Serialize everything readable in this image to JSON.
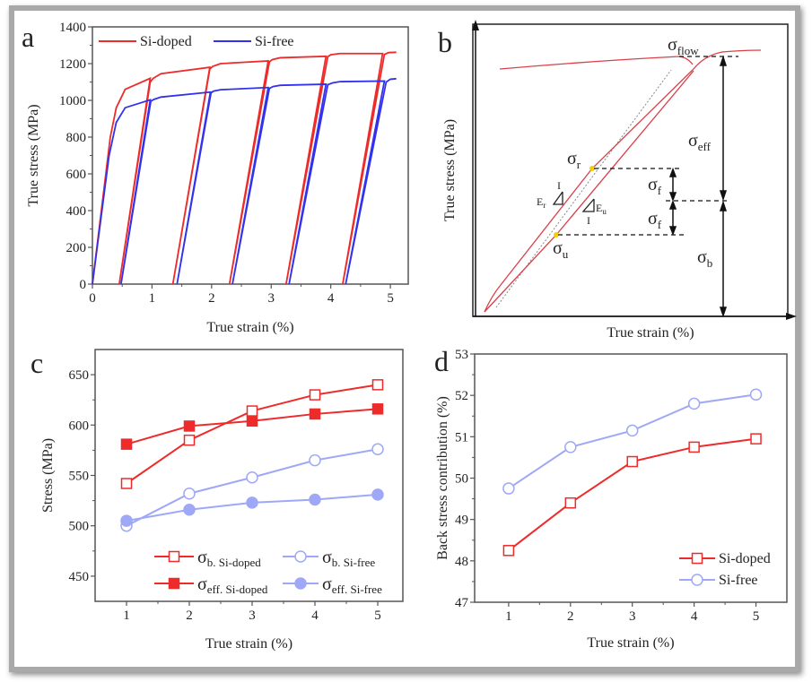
{
  "panels": {
    "a": {
      "letter": "a"
    },
    "b": {
      "letter": "b"
    },
    "c": {
      "letter": "c"
    },
    "d": {
      "letter": "d"
    }
  },
  "chart_data": [
    {
      "id": "a",
      "type": "line",
      "xlabel": "True strain (%)",
      "ylabel": "True stress (MPa)",
      "xlim": [
        0,
        5.3
      ],
      "ylim": [
        0,
        1400
      ],
      "xticks": [
        "0",
        "1",
        "2",
        "3",
        "4",
        "5"
      ],
      "yticks": [
        "0",
        "200",
        "400",
        "600",
        "800",
        "1000",
        "1200",
        "1400"
      ],
      "legend": "top",
      "series": [
        {
          "name": "Si-doped",
          "color": "#ee2b2b",
          "points": [
            [
              0,
              0
            ],
            [
              0.3,
              800
            ],
            [
              0.4,
              960
            ],
            [
              0.55,
              1060
            ],
            [
              0.97,
              1120
            ],
            [
              0.45,
              0
            ],
            [
              0.97,
              1100
            ],
            [
              1.02,
              1120
            ],
            [
              1.15,
              1145
            ],
            [
              1.97,
              1180
            ],
            [
              1.35,
              0
            ],
            [
              1.97,
              1170
            ],
            [
              2.02,
              1185
            ],
            [
              2.15,
              1200
            ],
            [
              2.95,
              1215
            ],
            [
              2.3,
              0
            ],
            [
              2.97,
              1210
            ],
            [
              3.02,
              1222
            ],
            [
              3.15,
              1232
            ],
            [
              3.92,
              1240
            ],
            [
              3.25,
              0
            ],
            [
              3.95,
              1238
            ],
            [
              4.0,
              1248
            ],
            [
              4.15,
              1255
            ],
            [
              4.87,
              1255
            ],
            [
              4.2,
              0
            ],
            [
              4.9,
              1250
            ],
            [
              4.97,
              1260
            ],
            [
              5.1,
              1262
            ]
          ]
        },
        {
          "name": "Si-free",
          "color": "#3232ee",
          "points": [
            [
              0,
              0
            ],
            [
              0.28,
              700
            ],
            [
              0.4,
              880
            ],
            [
              0.55,
              960
            ],
            [
              0.97,
              1003
            ],
            [
              0.48,
              0
            ],
            [
              0.98,
              995
            ],
            [
              1.03,
              1005
            ],
            [
              1.15,
              1018
            ],
            [
              1.98,
              1045
            ],
            [
              1.42,
              0
            ],
            [
              1.99,
              1040
            ],
            [
              2.03,
              1050
            ],
            [
              2.15,
              1058
            ],
            [
              2.95,
              1070
            ],
            [
              2.35,
              0
            ],
            [
              2.97,
              1065
            ],
            [
              3.03,
              1075
            ],
            [
              3.15,
              1082
            ],
            [
              3.92,
              1088
            ],
            [
              3.3,
              0
            ],
            [
              3.95,
              1085
            ],
            [
              4.03,
              1095
            ],
            [
              4.15,
              1102
            ],
            [
              4.9,
              1105
            ],
            [
              4.25,
              0
            ],
            [
              4.93,
              1100
            ],
            [
              5.0,
              1115
            ],
            [
              5.1,
              1118
            ]
          ]
        }
      ]
    },
    {
      "id": "b",
      "type": "diagram",
      "xlabel": "True strain (%)",
      "ylabel": "True stress (MPa)",
      "labels": {
        "flow": {
          "main": "σ",
          "sub": "flow"
        },
        "eff": {
          "main": "σ",
          "sub": "eff"
        },
        "f1": {
          "main": "σ",
          "sub": "f"
        },
        "f2": {
          "main": "σ",
          "sub": "f"
        },
        "b": {
          "main": "σ",
          "sub": "b"
        },
        "r": {
          "main": "σ",
          "sub": "r"
        },
        "u": {
          "main": "σ",
          "sub": "u"
        },
        "Er": {
          "main": "E",
          "sub": "r"
        },
        "Eu": {
          "main": "E",
          "sub": "u"
        },
        "one_r": "I",
        "one_u": "I"
      },
      "point_color": "#f0d000",
      "curve_color": "#d9404a"
    },
    {
      "id": "c",
      "type": "line",
      "xlabel": "True strain (%)",
      "ylabel": "Stress (MPa)",
      "x": [
        1,
        2,
        3,
        4,
        5
      ],
      "xlim": [
        0.5,
        5.4
      ],
      "ylim": [
        425,
        675
      ],
      "xticks": [
        "1",
        "2",
        "3",
        "4",
        "5"
      ],
      "yticks": [
        "450",
        "500",
        "550",
        "600",
        "650"
      ],
      "legend": "bottom",
      "series": [
        {
          "name": {
            "main": "σ",
            "sub": "b. Si-doped"
          },
          "color": "#ee2b2b",
          "marker": "square-open",
          "values": [
            542,
            585,
            614,
            630,
            640
          ]
        },
        {
          "name": {
            "main": "σ",
            "sub": "eff. Si-doped"
          },
          "color": "#ee2b2b",
          "marker": "square-filled",
          "values": [
            581,
            599,
            604,
            611,
            616
          ]
        },
        {
          "name": {
            "main": "σ",
            "sub": "b. Si-free"
          },
          "color": "#9ea8f6",
          "marker": "circle-open",
          "values": [
            500,
            532,
            548,
            565,
            576
          ]
        },
        {
          "name": {
            "main": "σ",
            "sub": "eff. Si-free"
          },
          "color": "#9ea8f6",
          "marker": "circle-filled",
          "values": [
            505,
            516,
            523,
            526,
            531
          ]
        }
      ]
    },
    {
      "id": "d",
      "type": "line",
      "xlabel": "True strain (%)",
      "ylabel": "Back stress contribution (%)",
      "x": [
        1,
        2,
        3,
        4,
        5
      ],
      "xlim": [
        0.45,
        5.5
      ],
      "ylim": [
        47,
        53
      ],
      "xticks": [
        "1",
        "2",
        "3",
        "4",
        "5"
      ],
      "yticks": [
        "47",
        "48",
        "49",
        "50",
        "51",
        "52",
        "53"
      ],
      "legend": "bottom-right",
      "series": [
        {
          "name": "Si-doped",
          "color": "#ee2b2b",
          "marker": "square-open",
          "values": [
            48.25,
            49.4,
            50.4,
            50.75,
            50.95
          ]
        },
        {
          "name": "Si-free",
          "color": "#9ea8f6",
          "marker": "circle-open",
          "values": [
            49.75,
            50.75,
            51.15,
            51.8,
            52.02
          ]
        }
      ]
    }
  ]
}
